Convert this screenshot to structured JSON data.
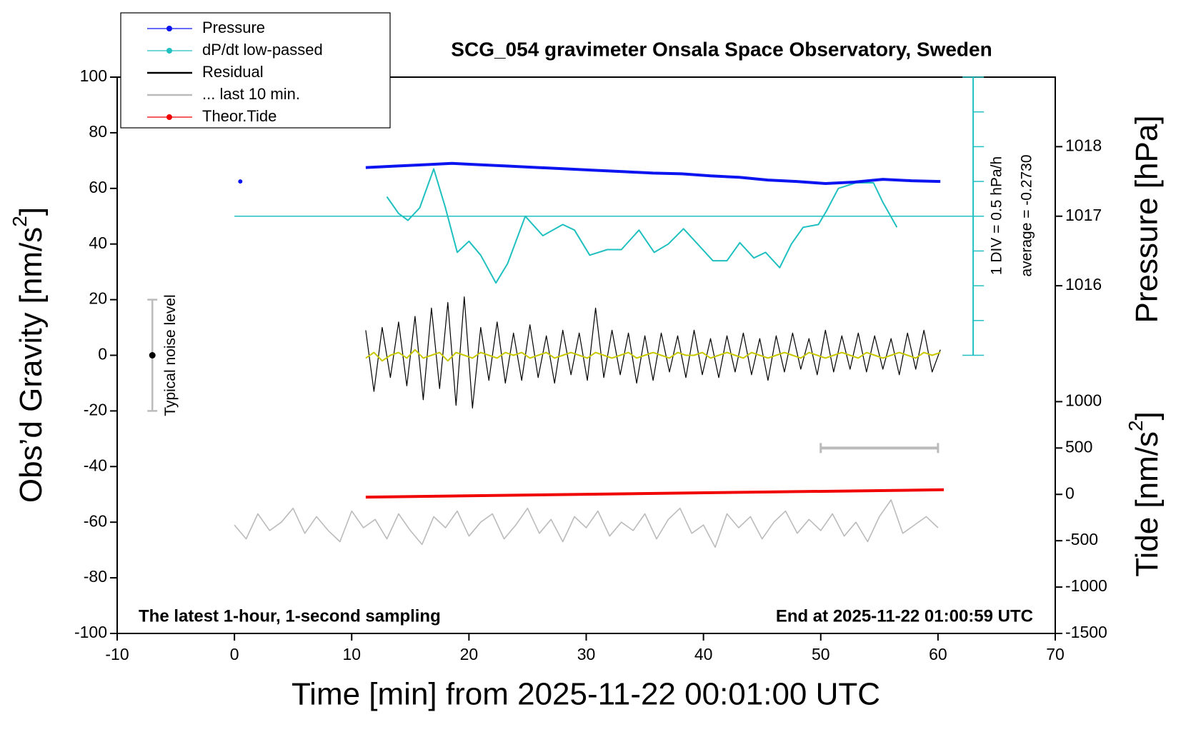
{
  "chart_data": {
    "type": "line",
    "title": "SCG_054 gravimeter Onsala Space Observatory, Sweden",
    "xlabel": "Time [min] from 2025-11-22 00:01:00 UTC",
    "ylabel": {
      "text": "Obs’d Gravity [nm/s",
      "sup": "2",
      "close": "]"
    },
    "y2label": "Pressure [hPa]",
    "y3label": {
      "text": "Tide [nm/s",
      "sup": "2",
      "close": "]"
    },
    "xlim": [
      -10,
      70
    ],
    "xticks": [
      -10,
      0,
      10,
      20,
      30,
      40,
      50,
      60,
      70
    ],
    "ylim": [
      -100,
      100
    ],
    "yticks": [
      -100,
      -80,
      -60,
      -40,
      -20,
      0,
      20,
      40,
      60,
      80,
      100
    ],
    "y2lim": [
      1011,
      1019
    ],
    "y2ticks": [
      1016,
      1017,
      1018
    ],
    "y3lim": [
      -1500,
      4500
    ],
    "y3ticks": [
      -1500,
      -1000,
      -500,
      0,
      500,
      1000
    ],
    "legend": "upper left",
    "annotations": [
      "The latest 1-hour, 1-second sampling",
      "End at 2025-11-22 01:00:59 UTC",
      "1 DIV = 0.5 hPa/h",
      "average = -0.2730"
    ],
    "dpdt_axis": {
      "x": 63,
      "ylim": [
        -6,
        2
      ],
      "ticks": [
        -2,
        -1.5,
        -1,
        -0.5,
        0,
        0.5,
        1,
        1.5,
        2
      ],
      "baseline_x": [
        0,
        63
      ],
      "color": "#20c0c0"
    },
    "noise_bar": {
      "x": -7,
      "values": [
        -20,
        20
      ],
      "center": 0,
      "label": "Typical noise level"
    },
    "last10_bracket": {
      "x": [
        50,
        60
      ],
      "value": 500
    },
    "series": [
      {
        "name": "Pressure",
        "color": "#0a14f0",
        "axis": "y2",
        "marker": true,
        "width": 4,
        "x": [
          0.5,
          5.8,
          11.2,
          13.65,
          16.1,
          18.55,
          21,
          23.45,
          25.9,
          28.35,
          30.8,
          33.25,
          35.7,
          38.15,
          40.6,
          43.05,
          45.5,
          47.95,
          50.4,
          52.85,
          55.3,
          57.75,
          60.2
        ],
        "values": [
          1017.5,
          null,
          1017.7,
          1017.72,
          1017.74,
          1017.76,
          1017.74,
          1017.72,
          1017.7,
          1017.68,
          1017.66,
          1017.64,
          1017.62,
          1017.61,
          1017.58,
          1017.56,
          1017.52,
          1017.5,
          1017.47,
          1017.49,
          1017.53,
          1017.51,
          1017.5
        ]
      },
      {
        "name": "dP/dt low-passed",
        "color": "#20c0c0",
        "axis": "dpdt",
        "marker": true,
        "width": 2,
        "x": [
          13,
          14,
          14.8,
          15.8,
          17,
          18,
          19,
          20,
          21,
          22.3,
          23.3,
          24.8,
          26.3,
          28,
          29,
          30.3,
          31.8,
          33,
          34.5,
          35.8,
          37,
          38.3,
          39.5,
          40.8,
          42,
          43.1,
          44.3,
          45.3,
          46.5,
          47.5,
          48.5,
          49.8,
          50.5,
          51.5,
          53,
          54.5,
          55.3,
          56.5
        ],
        "values": [
          0.28,
          0.04,
          -0.06,
          0.12,
          0.68,
          0.12,
          -0.52,
          -0.36,
          -0.56,
          -0.96,
          -0.68,
          0,
          -0.28,
          -0.12,
          -0.2,
          -0.56,
          -0.48,
          -0.48,
          -0.2,
          -0.52,
          -0.4,
          -0.18,
          -0.4,
          -0.64,
          -0.64,
          -0.38,
          -0.6,
          -0.52,
          -0.74,
          -0.4,
          -0.16,
          -0.12,
          0.08,
          0.4,
          0.48,
          0.48,
          0.2,
          -0.16
        ]
      },
      {
        "name": "Residual",
        "color": "#000000",
        "marker": false,
        "width": 1.2,
        "x": [
          11.2,
          11.9,
          12.6,
          13.3,
          14.0,
          14.7,
          15.4,
          16.1,
          16.8,
          17.5,
          18.2,
          18.9,
          19.6,
          20.3,
          21.0,
          21.7,
          22.4,
          23.1,
          23.8,
          24.5,
          25.2,
          25.9,
          26.6,
          27.3,
          28.0,
          28.7,
          29.4,
          30.1,
          30.8,
          31.5,
          32.2,
          32.9,
          33.6,
          34.3,
          35.0,
          35.7,
          36.4,
          37.1,
          37.8,
          38.5,
          39.2,
          39.9,
          40.6,
          41.3,
          42.0,
          42.7,
          43.4,
          44.1,
          44.8,
          45.5,
          46.2,
          46.9,
          47.6,
          48.3,
          49.0,
          49.7,
          50.4,
          51.1,
          51.8,
          52.5,
          53.2,
          53.9,
          54.6,
          55.3,
          56.0,
          56.7,
          57.4,
          58.1,
          58.8,
          59.5,
          60.2
        ],
        "values": [
          9,
          -13,
          10,
          -8,
          12,
          -11,
          14,
          -16,
          17,
          -12,
          19,
          -18,
          21,
          -19,
          10,
          -9,
          12,
          -10,
          8,
          -9,
          11,
          -8,
          7,
          -10,
          9,
          -7,
          8,
          -9,
          17,
          -8,
          9,
          -7,
          8,
          -10,
          7,
          -9,
          8,
          -6,
          7,
          -8,
          9,
          -7,
          6,
          -8,
          7,
          -6,
          8,
          -7,
          6,
          -9,
          7,
          -6,
          8,
          -5,
          6,
          -7,
          9,
          -6,
          7,
          -5,
          8,
          -6,
          7,
          -5,
          6,
          -7,
          8,
          -5,
          9,
          -6,
          2
        ]
      },
      {
        "color": "#c8c800",
        "marker": false,
        "width": 2,
        "x": [
          11.2,
          11.9,
          12.6,
          13.3,
          14.0,
          14.7,
          15.4,
          16.1,
          16.8,
          17.5,
          18.2,
          18.9,
          19.6,
          20.3,
          21.0,
          21.7,
          22.4,
          23.1,
          23.8,
          24.5,
          25.2,
          25.9,
          26.6,
          27.3,
          28.0,
          28.7,
          29.4,
          30.1,
          30.8,
          31.5,
          32.2,
          32.9,
          33.6,
          34.3,
          35.0,
          35.7,
          36.4,
          37.1,
          37.8,
          38.5,
          39.2,
          39.9,
          40.6,
          41.3,
          42.0,
          42.7,
          43.4,
          44.1,
          44.8,
          45.5,
          46.2,
          46.9,
          47.6,
          48.3,
          49.0,
          49.7,
          50.4,
          51.1,
          51.8,
          52.5,
          53.2,
          53.9,
          54.6,
          55.3,
          56.0,
          56.7,
          57.4,
          58.1,
          58.8,
          59.5,
          60.2
        ],
        "values": [
          -1,
          1,
          -2,
          0,
          1,
          -1,
          2,
          -1,
          0,
          1,
          -2,
          1,
          0,
          -1,
          1,
          0,
          -1,
          1,
          0,
          1,
          -1,
          0,
          1,
          -1,
          0,
          1,
          0,
          -1,
          1,
          0,
          -1,
          0,
          1,
          -1,
          0,
          1,
          0,
          -1,
          1,
          0,
          0,
          1,
          -1,
          0,
          1,
          0,
          -1,
          1,
          0,
          -1,
          0,
          1,
          0,
          -1,
          1,
          0,
          -1,
          0,
          1,
          0,
          -1,
          1,
          0,
          -1,
          0,
          1,
          0,
          -1,
          1,
          0,
          1
        ]
      },
      {
        "name": "... last 10 min.",
        "color": "#bbbbbb",
        "marker": false,
        "width": 1.6,
        "x": [
          0,
          1,
          2,
          3,
          4,
          5,
          6,
          7,
          8,
          9,
          10,
          11,
          12,
          13,
          14,
          15,
          16,
          17,
          18,
          19,
          20,
          21,
          22,
          23,
          24,
          25,
          26,
          27,
          28,
          29,
          30,
          31,
          32,
          33,
          34,
          35,
          36,
          37,
          38,
          39,
          40,
          41,
          42,
          43,
          44,
          45,
          46,
          47,
          48,
          49,
          50,
          51,
          52,
          53,
          54,
          55,
          56,
          57,
          58,
          59,
          60
        ],
        "values": [
          -61,
          -66,
          -57,
          -63,
          -60,
          -55,
          -64,
          -58,
          -63,
          -67,
          -56,
          -62,
          -59,
          -66,
          -57,
          -63,
          -68,
          -58,
          -62,
          -56,
          -65,
          -60,
          -57,
          -66,
          -61,
          -55,
          -64,
          -59,
          -67,
          -58,
          -62,
          -56,
          -65,
          -60,
          -63,
          -57,
          -66,
          -59,
          -55,
          -64,
          -61,
          -69,
          -57,
          -62,
          -58,
          -66,
          -60,
          -56,
          -64,
          -59,
          -63,
          -57,
          -65,
          -60,
          -67,
          -58,
          -52,
          -64,
          -61,
          -58,
          -62
        ]
      },
      {
        "name": "Theor.Tide",
        "color": "#f00000",
        "axis": "y3",
        "marker": true,
        "width": 4,
        "x": [
          11.2,
          60.5
        ],
        "values": [
          -30,
          50
        ]
      }
    ]
  }
}
